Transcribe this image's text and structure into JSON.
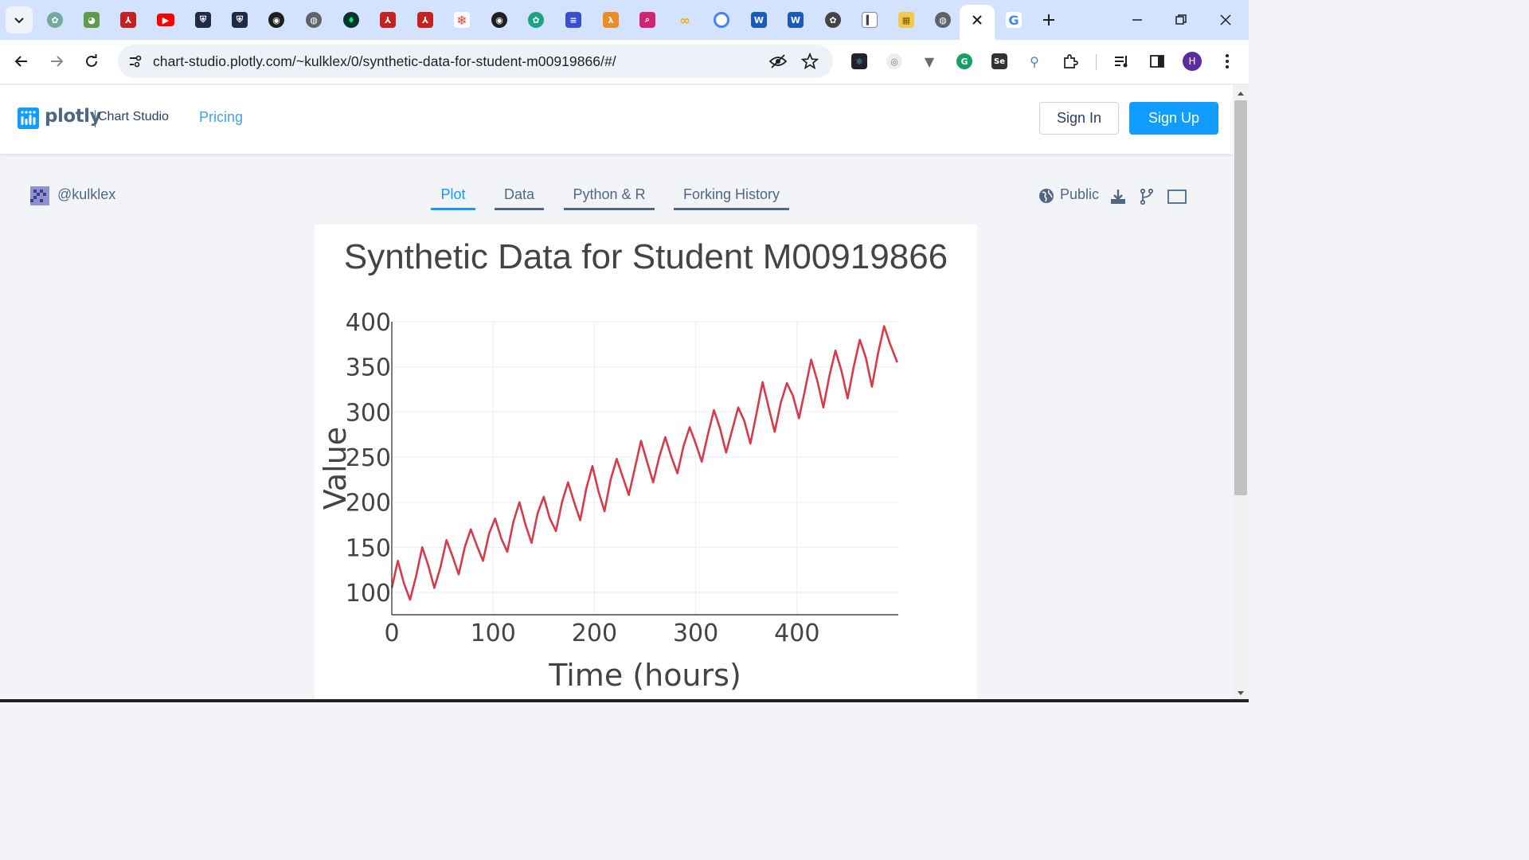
{
  "browser": {
    "url": "chart-studio.plotly.com/~kulklex/0/synthetic-data-for-student-m00919866/#/",
    "profile_initial": "H"
  },
  "site": {
    "brand": "plotly",
    "product": "Chart Studio",
    "nav_pricing": "Pricing",
    "sign_in": "Sign In",
    "sign_up": "Sign Up"
  },
  "page": {
    "username": "@kulklex",
    "tabs": [
      "Plot",
      "Data",
      "Python & R",
      "Forking History"
    ],
    "active_tab": "Plot",
    "visibility": "Public"
  },
  "colors": {
    "accent": "#119dff",
    "line": "#d73a4a",
    "text_muted": "#506784"
  },
  "chart_data": {
    "type": "line",
    "title": "Synthetic Data for Student M00919866",
    "xlabel": "Time (hours)",
    "ylabel": "Value",
    "xlim": [
      0,
      500
    ],
    "ylim": [
      100,
      400
    ],
    "x_ticks": [
      0,
      100,
      200,
      300,
      400
    ],
    "y_ticks": [
      100,
      150,
      200,
      250,
      300,
      350,
      400
    ],
    "grid": true,
    "series": [
      {
        "x": [
          0,
          6,
          12,
          18,
          24,
          30,
          36,
          42,
          48,
          54,
          60,
          66,
          72,
          78,
          84,
          90,
          96,
          102,
          108,
          114,
          120,
          126,
          132,
          138,
          144,
          150,
          156,
          162,
          168,
          174,
          180,
          186,
          192,
          198,
          204,
          210,
          216,
          222,
          228,
          234,
          240,
          246,
          252,
          258,
          264,
          270,
          276,
          282,
          288,
          294,
          300,
          306,
          312,
          318,
          324,
          330,
          336,
          342,
          348,
          354,
          360,
          366,
          372,
          378,
          384,
          390,
          396,
          402,
          408,
          414,
          420,
          426,
          432,
          438,
          444,
          450,
          456,
          462,
          468,
          474,
          480,
          486,
          492,
          499
        ],
        "y": [
          105,
          135,
          110,
          92,
          118,
          150,
          130,
          105,
          128,
          158,
          140,
          120,
          150,
          170,
          152,
          135,
          165,
          182,
          160,
          145,
          178,
          200,
          175,
          155,
          188,
          206,
          182,
          168,
          200,
          222,
          200,
          180,
          215,
          240,
          212,
          190,
          225,
          248,
          228,
          208,
          238,
          268,
          245,
          222,
          250,
          272,
          250,
          232,
          262,
          283,
          265,
          245,
          275,
          302,
          282,
          255,
          280,
          305,
          290,
          265,
          298,
          333,
          305,
          278,
          310,
          332,
          318,
          293,
          325,
          358,
          335,
          305,
          340,
          368,
          345,
          315,
          350,
          380,
          360,
          328,
          365,
          395,
          375,
          355
        ],
        "name": ""
      }
    ]
  }
}
